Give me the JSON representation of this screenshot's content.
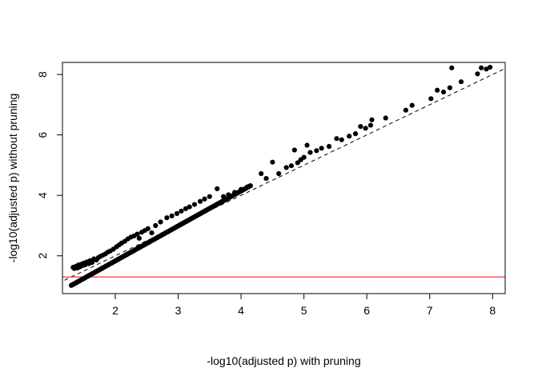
{
  "chart_data": {
    "type": "scatter",
    "title": "",
    "xlabel": "-log10(adjusted p) with pruning",
    "ylabel": "-log10(adjusted p) without pruning",
    "xlim": [
      1.16,
      8.2
    ],
    "ylim": [
      0.75,
      8.4
    ],
    "xticks": [
      2,
      3,
      4,
      5,
      6,
      7,
      8
    ],
    "yticks": [
      2,
      4,
      6,
      8
    ],
    "grid": false,
    "reference_lines": [
      {
        "kind": "abline",
        "intercept": 0,
        "slope": 1,
        "style": "dashed",
        "color": "#000000"
      },
      {
        "kind": "hline",
        "y": 1.30103,
        "style": "solid",
        "color": "#ff0000"
      }
    ],
    "point_color": "#000000",
    "series": [
      {
        "lower_band": {
          "x_start": 1.3,
          "x_end": 4.15,
          "y_start": 1.02,
          "y_end": 4.32,
          "count": 260
        },
        "points": [
          [
            1.33,
            1.62
          ],
          [
            1.35,
            1.58
          ],
          [
            1.38,
            1.66
          ],
          [
            1.4,
            1.6
          ],
          [
            1.42,
            1.7
          ],
          [
            1.44,
            1.64
          ],
          [
            1.46,
            1.72
          ],
          [
            1.48,
            1.68
          ],
          [
            1.5,
            1.76
          ],
          [
            1.52,
            1.7
          ],
          [
            1.55,
            1.8
          ],
          [
            1.58,
            1.74
          ],
          [
            1.6,
            1.84
          ],
          [
            1.63,
            1.78
          ],
          [
            1.66,
            1.9
          ],
          [
            1.7,
            1.86
          ],
          [
            1.73,
            1.94
          ],
          [
            1.76,
            1.98
          ],
          [
            1.8,
            2.02
          ],
          [
            1.84,
            2.06
          ],
          [
            1.88,
            2.12
          ],
          [
            1.92,
            2.16
          ],
          [
            1.97,
            2.22
          ],
          [
            2.02,
            2.3
          ],
          [
            2.06,
            2.36
          ],
          [
            2.1,
            2.42
          ],
          [
            2.15,
            2.48
          ],
          [
            2.2,
            2.56
          ],
          [
            2.25,
            2.62
          ],
          [
            2.3,
            2.66
          ],
          [
            2.35,
            2.72
          ],
          [
            2.38,
            2.58
          ],
          [
            2.42,
            2.78
          ],
          [
            2.47,
            2.84
          ],
          [
            2.52,
            2.9
          ],
          [
            2.58,
            2.76
          ],
          [
            2.64,
            3.0
          ],
          [
            2.72,
            3.12
          ],
          [
            2.82,
            3.26
          ],
          [
            2.9,
            3.32
          ],
          [
            2.98,
            3.4
          ],
          [
            3.05,
            3.48
          ],
          [
            3.12,
            3.56
          ],
          [
            3.18,
            3.62
          ],
          [
            3.26,
            3.7
          ],
          [
            3.35,
            3.8
          ],
          [
            3.42,
            3.88
          ],
          [
            3.5,
            3.96
          ],
          [
            3.62,
            4.22
          ],
          [
            3.72,
            3.96
          ],
          [
            3.8,
            4.02
          ],
          [
            3.9,
            4.1
          ],
          [
            4.0,
            4.2
          ],
          [
            4.1,
            4.28
          ],
          [
            4.32,
            4.72
          ],
          [
            4.4,
            4.56
          ],
          [
            4.5,
            5.1
          ],
          [
            4.6,
            4.72
          ],
          [
            4.72,
            4.92
          ],
          [
            4.8,
            4.98
          ],
          [
            4.85,
            5.5
          ],
          [
            4.9,
            5.08
          ],
          [
            4.95,
            5.18
          ],
          [
            5.0,
            5.26
          ],
          [
            5.05,
            5.66
          ],
          [
            5.1,
            5.42
          ],
          [
            5.2,
            5.48
          ],
          [
            5.28,
            5.56
          ],
          [
            5.4,
            5.62
          ],
          [
            5.52,
            5.88
          ],
          [
            5.6,
            5.84
          ],
          [
            5.72,
            5.96
          ],
          [
            5.82,
            6.04
          ],
          [
            5.9,
            6.28
          ],
          [
            5.98,
            6.22
          ],
          [
            6.06,
            6.32
          ],
          [
            6.08,
            6.5
          ],
          [
            6.3,
            6.56
          ],
          [
            6.62,
            6.82
          ],
          [
            6.72,
            6.98
          ],
          [
            7.02,
            7.2
          ],
          [
            7.12,
            7.48
          ],
          [
            7.22,
            7.42
          ],
          [
            7.32,
            7.56
          ],
          [
            7.35,
            8.22
          ],
          [
            7.5,
            7.76
          ],
          [
            7.76,
            8.02
          ],
          [
            7.82,
            8.22
          ],
          [
            7.9,
            8.18
          ],
          [
            7.96,
            8.24
          ]
        ]
      }
    ]
  }
}
